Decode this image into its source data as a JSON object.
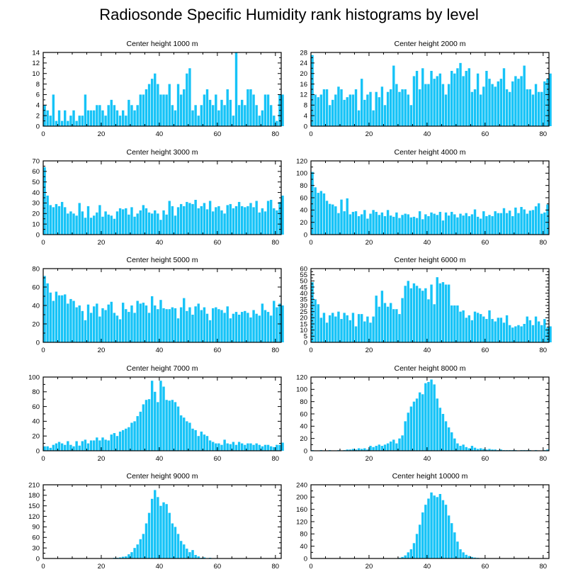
{
  "title": "Radiosonde Specific Humidity rank histograms by level",
  "bar_color": "#16c3f7",
  "chart_data": [
    {
      "type": "bar",
      "title": "Center height 1000 m",
      "xlim": [
        0,
        82
      ],
      "ylim": [
        0,
        14
      ],
      "xticks": [
        0,
        20,
        40,
        60,
        80
      ],
      "yticks": [
        0,
        2,
        4,
        6,
        8,
        10,
        12,
        14
      ],
      "values": [
        4,
        3,
        2,
        6,
        1,
        3,
        1,
        3,
        1,
        2,
        3,
        1,
        2,
        2,
        6,
        3,
        3,
        3,
        4,
        4,
        3,
        2,
        4,
        5,
        4,
        3,
        2,
        3,
        2,
        5,
        4,
        3,
        4,
        6,
        6,
        7,
        8,
        9,
        10,
        8,
        6,
        6,
        6,
        8,
        4,
        3,
        8,
        6,
        7,
        10,
        11,
        3,
        4,
        2,
        4,
        6,
        7,
        5,
        4,
        6,
        3,
        5,
        4,
        7,
        5,
        2,
        14,
        4,
        5,
        4,
        7,
        7,
        6,
        4,
        2,
        3,
        6,
        6,
        4,
        2,
        1,
        6,
        6
      ]
    },
    {
      "type": "bar",
      "title": "Center height 2000 m",
      "xlim": [
        0,
        82
      ],
      "ylim": [
        0,
        28
      ],
      "xticks": [
        0,
        20,
        40,
        60,
        80
      ],
      "yticks": [
        0,
        4,
        8,
        12,
        16,
        20,
        24,
        28
      ],
      "values": [
        27,
        12,
        11,
        12,
        14,
        14,
        8,
        10,
        12,
        15,
        14,
        10,
        11,
        12,
        12,
        14,
        6,
        18,
        10,
        12,
        13,
        6,
        13,
        11,
        15,
        8,
        13,
        14,
        23,
        16,
        13,
        14,
        14,
        12,
        8,
        19,
        21,
        14,
        22,
        16,
        16,
        21,
        18,
        19,
        20,
        16,
        12,
        16,
        21,
        20,
        22,
        24,
        19,
        21,
        22,
        13,
        14,
        20,
        12,
        15,
        21,
        18,
        16,
        15,
        17,
        18,
        22,
        14,
        13,
        17,
        19,
        18,
        19,
        23,
        14,
        14,
        12,
        16,
        13,
        13,
        17,
        18,
        20
      ]
    },
    {
      "type": "bar",
      "title": "Center height 3000 m",
      "xlim": [
        0,
        82
      ],
      "ylim": [
        0,
        70
      ],
      "xticks": [
        0,
        20,
        40,
        60,
        80
      ],
      "yticks": [
        0,
        10,
        20,
        30,
        40,
        50,
        60,
        70
      ],
      "values": [
        64,
        37,
        28,
        26,
        29,
        27,
        31,
        26,
        20,
        22,
        20,
        18,
        30,
        22,
        16,
        27,
        16,
        18,
        21,
        28,
        17,
        22,
        19,
        18,
        15,
        22,
        25,
        24,
        25,
        19,
        26,
        17,
        20,
        23,
        28,
        25,
        21,
        20,
        23,
        20,
        14,
        23,
        19,
        32,
        27,
        18,
        26,
        29,
        27,
        31,
        30,
        29,
        33,
        25,
        27,
        30,
        24,
        32,
        22,
        26,
        27,
        23,
        20,
        28,
        29,
        25,
        27,
        31,
        27,
        26,
        27,
        30,
        26,
        32,
        21,
        25,
        22,
        32,
        33,
        25,
        23,
        31,
        37
      ]
    },
    {
      "type": "bar",
      "title": "Center height 4000 m",
      "xlim": [
        0,
        82
      ],
      "ylim": [
        0,
        120
      ],
      "xticks": [
        0,
        20,
        40,
        60,
        80
      ],
      "yticks": [
        0,
        20,
        40,
        60,
        80,
        100,
        120
      ],
      "values": [
        102,
        77,
        68,
        71,
        67,
        55,
        50,
        49,
        46,
        35,
        57,
        38,
        59,
        33,
        37,
        38,
        30,
        33,
        40,
        26,
        34,
        40,
        37,
        32,
        36,
        30,
        40,
        31,
        29,
        36,
        27,
        32,
        34,
        33,
        28,
        29,
        27,
        38,
        25,
        33,
        30,
        36,
        34,
        32,
        37,
        23,
        36,
        31,
        37,
        33,
        28,
        34,
        31,
        35,
        30,
        33,
        41,
        29,
        26,
        38,
        30,
        32,
        30,
        38,
        35,
        35,
        43,
        35,
        39,
        30,
        44,
        35,
        45,
        41,
        34,
        39,
        40,
        46,
        51,
        34,
        36,
        49
      ]
    },
    {
      "type": "bar",
      "title": "Center height 5000 m",
      "xlim": [
        0,
        82
      ],
      "ylim": [
        0,
        80
      ],
      "xticks": [
        0,
        20,
        40,
        60,
        80
      ],
      "yticks": [
        0,
        20,
        40,
        60,
        80
      ],
      "values": [
        72,
        64,
        54,
        45,
        55,
        51,
        51,
        52,
        42,
        47,
        45,
        38,
        40,
        34,
        24,
        41,
        32,
        39,
        42,
        28,
        37,
        35,
        41,
        44,
        32,
        29,
        25,
        43,
        36,
        33,
        40,
        32,
        45,
        42,
        43,
        40,
        32,
        50,
        40,
        36,
        46,
        37,
        36,
        36,
        38,
        37,
        26,
        38,
        48,
        34,
        38,
        30,
        39,
        42,
        35,
        38,
        31,
        24,
        37,
        38,
        36,
        35,
        32,
        39,
        26,
        31,
        33,
        30,
        33,
        34,
        32,
        27,
        35,
        31,
        29,
        42,
        35,
        33,
        29,
        45,
        38,
        42,
        40
      ]
    },
    {
      "type": "bar",
      "title": "Center height 6000 m",
      "xlim": [
        0,
        82
      ],
      "ylim": [
        0,
        60
      ],
      "xticks": [
        0,
        20,
        40,
        60,
        80
      ],
      "yticks": [
        0,
        5,
        10,
        15,
        20,
        25,
        30,
        35,
        40,
        45,
        50,
        55,
        60
      ],
      "values": [
        49,
        35,
        31,
        20,
        24,
        16,
        22,
        24,
        21,
        25,
        19,
        24,
        22,
        18,
        24,
        13,
        23,
        23,
        17,
        21,
        16,
        21,
        38,
        29,
        42,
        32,
        29,
        32,
        27,
        27,
        23,
        36,
        46,
        50,
        44,
        48,
        46,
        44,
        42,
        44,
        35,
        47,
        31,
        53,
        48,
        49,
        47,
        47,
        30,
        30,
        30,
        25,
        26,
        20,
        22,
        18,
        25,
        24,
        23,
        21,
        19,
        26,
        19,
        17,
        20,
        20,
        16,
        22,
        14,
        12,
        13,
        14,
        13,
        15,
        21,
        18,
        14,
        21,
        17,
        14,
        19,
        12,
        13
      ]
    },
    {
      "type": "bar",
      "title": "Center height 7000 m",
      "xlim": [
        0,
        82
      ],
      "ylim": [
        0,
        100
      ],
      "xticks": [
        0,
        20,
        40,
        60,
        80
      ],
      "yticks": [
        0,
        20,
        40,
        60,
        80,
        100
      ],
      "values": [
        6,
        6,
        4,
        8,
        10,
        12,
        10,
        8,
        13,
        8,
        6,
        13,
        7,
        13,
        15,
        10,
        14,
        14,
        18,
        14,
        18,
        15,
        14,
        22,
        24,
        20,
        26,
        28,
        30,
        32,
        38,
        40,
        47,
        53,
        63,
        69,
        70,
        95,
        80,
        66,
        95,
        87,
        69,
        68,
        69,
        66,
        60,
        48,
        45,
        40,
        38,
        30,
        28,
        20,
        26,
        22,
        20,
        14,
        12,
        10,
        10,
        8,
        15,
        10,
        9,
        12,
        8,
        12,
        10,
        8,
        10,
        10,
        8,
        10,
        8,
        6,
        8,
        8,
        6,
        5,
        8,
        8,
        11
      ]
    },
    {
      "type": "bar",
      "title": "Center height 8000 m",
      "xlim": [
        0,
        82
      ],
      "ylim": [
        0,
        120
      ],
      "xticks": [
        0,
        20,
        40,
        60,
        80
      ],
      "yticks": [
        0,
        20,
        40,
        60,
        80,
        100,
        120
      ],
      "values": [
        1,
        0,
        0,
        1,
        0,
        0,
        1,
        0,
        0,
        1,
        0,
        1,
        2,
        2,
        3,
        2,
        4,
        3,
        4,
        2,
        8,
        6,
        8,
        10,
        8,
        10,
        12,
        15,
        18,
        12,
        20,
        25,
        48,
        62,
        72,
        80,
        85,
        95,
        92,
        110,
        112,
        116,
        108,
        85,
        70,
        60,
        48,
        38,
        30,
        20,
        12,
        8,
        10,
        6,
        4,
        8,
        5,
        3,
        4,
        3,
        2,
        3,
        2,
        2,
        1,
        2,
        1,
        1,
        1,
        1,
        1,
        0,
        1,
        1,
        1,
        1,
        0,
        1,
        0,
        0,
        1,
        2,
        0
      ]
    },
    {
      "type": "bar",
      "title": "Center height 9000 m",
      "xlim": [
        0,
        82
      ],
      "ylim": [
        0,
        210
      ],
      "xticks": [
        0,
        20,
        40,
        60,
        80
      ],
      "yticks": [
        0,
        30,
        60,
        90,
        120,
        150,
        180,
        210
      ],
      "values": [
        0,
        0,
        0,
        0,
        0,
        0,
        0,
        0,
        0,
        0,
        0,
        0,
        0,
        0,
        0,
        0,
        0,
        0,
        0,
        0,
        0,
        0,
        0,
        0,
        2,
        2,
        3,
        5,
        6,
        12,
        18,
        30,
        40,
        55,
        70,
        100,
        130,
        170,
        195,
        175,
        150,
        160,
        155,
        130,
        100,
        90,
        70,
        50,
        40,
        28,
        18,
        24,
        10,
        6,
        2,
        3,
        1,
        2,
        1,
        0,
        1,
        0,
        0,
        0,
        0,
        0,
        0,
        0,
        0,
        0,
        0,
        0,
        0,
        0,
        0,
        0,
        0,
        0,
        0,
        0,
        0,
        0,
        0
      ]
    },
    {
      "type": "bar",
      "title": "Center height 10000 m",
      "xlim": [
        0,
        82
      ],
      "ylim": [
        0,
        240
      ],
      "xticks": [
        0,
        20,
        40,
        60,
        80
      ],
      "yticks": [
        0,
        40,
        80,
        120,
        160,
        200,
        240
      ],
      "values": [
        0,
        0,
        0,
        0,
        0,
        0,
        0,
        0,
        0,
        0,
        0,
        0,
        0,
        0,
        0,
        0,
        0,
        0,
        0,
        0,
        0,
        0,
        0,
        0,
        0,
        0,
        0,
        0,
        0,
        0,
        2,
        5,
        10,
        20,
        30,
        50,
        80,
        110,
        150,
        175,
        195,
        215,
        205,
        200,
        210,
        190,
        175,
        140,
        115,
        85,
        55,
        30,
        20,
        12,
        8,
        5,
        3,
        2,
        1,
        1,
        0,
        0,
        0,
        0,
        0,
        0,
        0,
        0,
        0,
        0,
        0,
        0,
        0,
        0,
        0,
        0,
        0,
        0,
        0,
        0,
        0,
        0,
        0
      ]
    }
  ]
}
